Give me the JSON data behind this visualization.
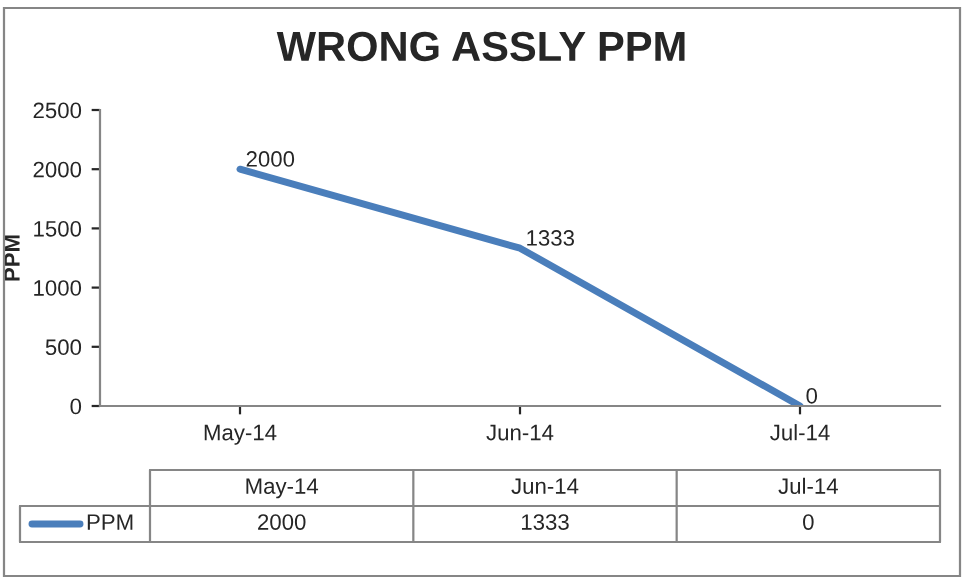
{
  "chart_data": {
    "type": "line",
    "title": "WRONG ASSLY PPM",
    "ylabel": "PPM",
    "categories": [
      "May-14",
      "Jun-14",
      "Jul-14"
    ],
    "series": [
      {
        "name": "PPM",
        "color": "#4a7ebb",
        "values": [
          2000,
          1333,
          0
        ],
        "value_labels": [
          "2000",
          "1333",
          "0"
        ]
      }
    ],
    "ylim": [
      0,
      2500
    ],
    "yticks": [
      0,
      500,
      1000,
      1500,
      2000,
      2500
    ],
    "marker": "none",
    "line_style": "solid",
    "grid": false
  }
}
